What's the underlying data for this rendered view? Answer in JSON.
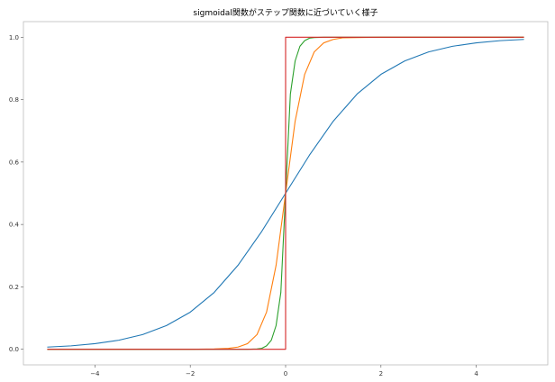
{
  "chart_data": {
    "type": "line",
    "title": "sigmoidal関数がステップ関数に近づいていく様子",
    "xlabel": "",
    "ylabel": "",
    "xlim": [
      -5.5,
      5.5
    ],
    "ylim": [
      -0.05,
      1.05
    ],
    "x_ticks": [
      -4,
      -2,
      0,
      2,
      4
    ],
    "y_ticks": [
      0.0,
      0.2,
      0.4,
      0.6,
      0.8,
      1.0
    ],
    "x_tick_labels": [
      "−4",
      "−2",
      "0",
      "2",
      "4"
    ],
    "y_tick_labels": [
      "0.0",
      "0.2",
      "0.4",
      "0.6",
      "0.8",
      "1.0"
    ],
    "grid": false,
    "legend": "none",
    "series": [
      {
        "color": "#1f77b4",
        "x": [
          -5,
          -4.5,
          -4,
          -3.5,
          -3,
          -2.5,
          -2,
          -1.5,
          -1,
          -0.5,
          0,
          0.5,
          1,
          1.5,
          2,
          2.5,
          3,
          3.5,
          4,
          4.5,
          5
        ],
        "y": [
          0.007,
          0.011,
          0.018,
          0.029,
          0.047,
          0.076,
          0.119,
          0.182,
          0.269,
          0.378,
          0.5,
          0.622,
          0.731,
          0.818,
          0.881,
          0.924,
          0.953,
          0.971,
          0.982,
          0.989,
          0.993
        ]
      },
      {
        "color": "#ff7f0e",
        "x": [
          -5,
          -2,
          -1.5,
          -1.2,
          -1,
          -0.8,
          -0.6,
          -0.4,
          -0.2,
          0,
          0.2,
          0.4,
          0.6,
          0.8,
          1,
          1.2,
          1.5,
          2,
          5
        ],
        "y": [
          0.0,
          0.0,
          0.001,
          0.003,
          0.007,
          0.018,
          0.047,
          0.119,
          0.269,
          0.5,
          0.731,
          0.881,
          0.953,
          0.982,
          0.993,
          0.998,
          0.999,
          1.0,
          1.0
        ]
      },
      {
        "color": "#2ca02c",
        "x": [
          -5,
          -0.8,
          -0.6,
          -0.5,
          -0.4,
          -0.3,
          -0.2,
          -0.1,
          0,
          0.1,
          0.2,
          0.3,
          0.4,
          0.5,
          0.6,
          0.8,
          5
        ],
        "y": [
          0.0,
          0.0,
          0.001,
          0.003,
          0.011,
          0.029,
          0.076,
          0.182,
          0.5,
          0.818,
          0.924,
          0.971,
          0.989,
          0.997,
          0.999,
          1.0,
          1.0
        ]
      },
      {
        "color": "#d62728",
        "x": [
          -5,
          0,
          0,
          5
        ],
        "y": [
          0.0,
          0.0,
          1.0,
          1.0
        ]
      }
    ]
  }
}
